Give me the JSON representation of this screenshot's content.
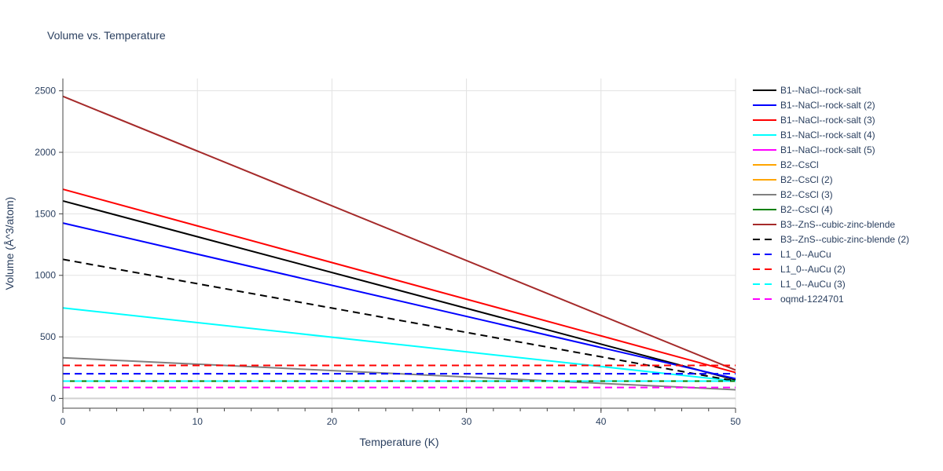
{
  "chart_data": {
    "type": "line",
    "title": "Volume vs. Temperature",
    "xlabel": "Temperature (K)",
    "ylabel": "Volume (Å^3/atom)",
    "xlim": [
      0,
      50
    ],
    "ylim": [
      -80,
      2600
    ],
    "xticks": [
      0,
      10,
      20,
      30,
      40,
      50
    ],
    "yticks": [
      0,
      500,
      1000,
      1500,
      2000,
      2500
    ],
    "grid": true,
    "legend_position": "right",
    "series": [
      {
        "name": "B1--NaCl--rock-salt",
        "color": "#000000",
        "dash": "solid",
        "x": [
          0,
          50
        ],
        "y": [
          1605,
          150
        ]
      },
      {
        "name": "B1--NaCl--rock-salt (2)",
        "color": "#0000ff",
        "dash": "solid",
        "x": [
          0,
          50
        ],
        "y": [
          1425,
          160
        ]
      },
      {
        "name": "B1--NaCl--rock-salt (3)",
        "color": "#ff0000",
        "dash": "solid",
        "x": [
          0,
          50
        ],
        "y": [
          1700,
          210
        ]
      },
      {
        "name": "B1--NaCl--rock-salt (4)",
        "color": "#00ffff",
        "dash": "solid",
        "x": [
          0,
          50
        ],
        "y": [
          735,
          140
        ]
      },
      {
        "name": "B1--NaCl--rock-salt (5)",
        "color": "#ff00ff",
        "dash": "solid",
        "x": [
          0,
          50
        ],
        "y": [
          140,
          140
        ]
      },
      {
        "name": "B2--CsCl",
        "color": "#ffa500",
        "dash": "solid",
        "x": [
          0,
          50
        ],
        "y": [
          140,
          140
        ]
      },
      {
        "name": "B2--CsCl (2)",
        "color": "#ffa500",
        "dash": "solid",
        "x": [
          0,
          50
        ],
        "y": [
          140,
          140
        ]
      },
      {
        "name": "B2--CsCl (3)",
        "color": "#808080",
        "dash": "solid",
        "x": [
          0,
          50
        ],
        "y": [
          330,
          70
        ]
      },
      {
        "name": "B2--CsCl (4)",
        "color": "#008000",
        "dash": "solid",
        "x": [
          0,
          50
        ],
        "y": [
          140,
          140
        ]
      },
      {
        "name": "B3--ZnS--cubic-zinc-blende",
        "color": "#a52a2a",
        "dash": "solid",
        "x": [
          0,
          50
        ],
        "y": [
          2455,
          230
        ]
      },
      {
        "name": "B3--ZnS--cubic-zinc-blende (2)",
        "color": "#000000",
        "dash": "dash",
        "x": [
          0,
          50
        ],
        "y": [
          1130,
          140
        ]
      },
      {
        "name": "L1_0--AuCu",
        "color": "#0000ff",
        "dash": "dash",
        "x": [
          0,
          50
        ],
        "y": [
          200,
          200
        ]
      },
      {
        "name": "L1_0--AuCu (2)",
        "color": "#ff0000",
        "dash": "dash",
        "x": [
          0,
          50
        ],
        "y": [
          268,
          268
        ]
      },
      {
        "name": "L1_0--AuCu (3)",
        "color": "#00ffff",
        "dash": "dash",
        "x": [
          0,
          50
        ],
        "y": [
          140,
          140
        ]
      },
      {
        "name": "oqmd-1224701",
        "color": "#ff00ff",
        "dash": "dash",
        "x": [
          0,
          50
        ],
        "y": [
          88,
          88
        ]
      }
    ]
  }
}
